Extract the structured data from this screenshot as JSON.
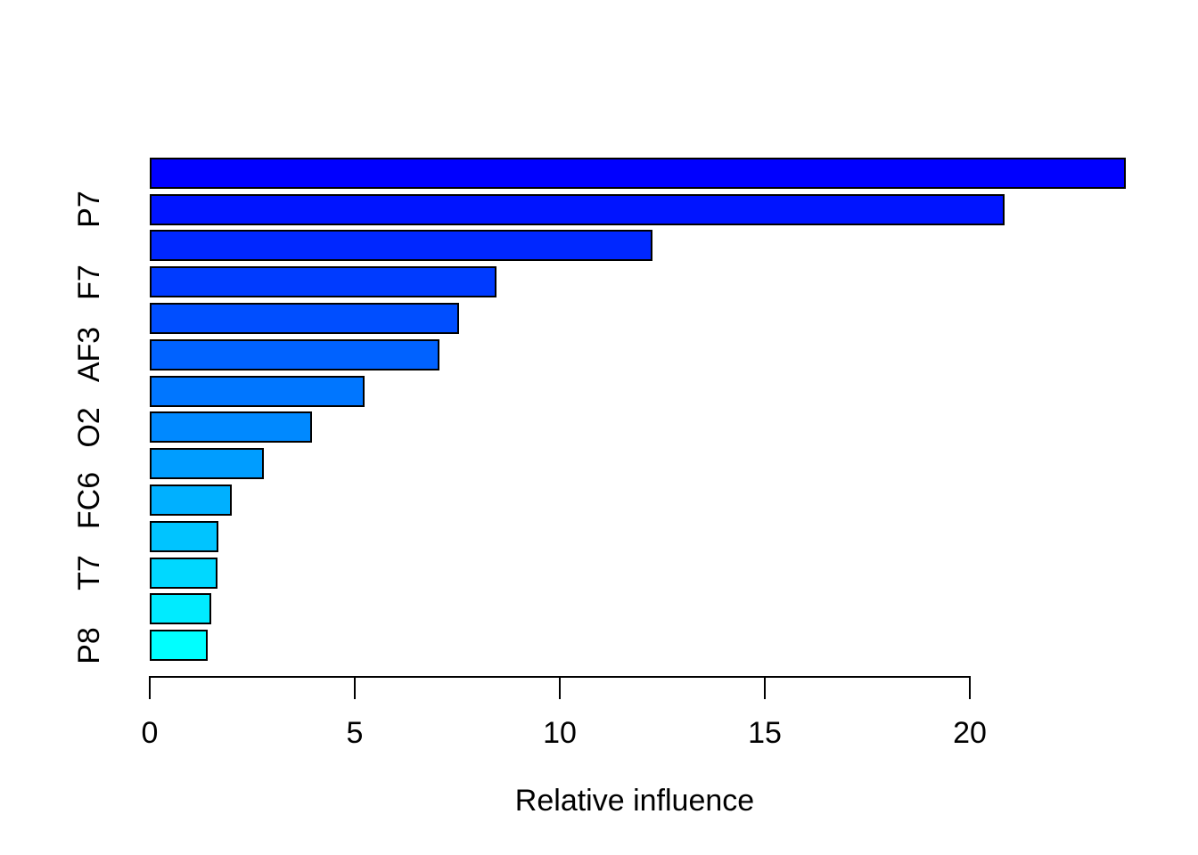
{
  "chart_data": {
    "type": "bar",
    "orientation": "horizontal",
    "title": "",
    "xlabel": "Relative influence",
    "ylabel": "",
    "xlim": [
      0,
      20
    ],
    "x_ticks": [
      0,
      5,
      10,
      15,
      20
    ],
    "grid": false,
    "legend_position": "none",
    "background_color": "#FFFFFF",
    "bar_border_color": "#000000",
    "text_color": "#000000",
    "bars": [
      {
        "label": "",
        "value": 23.8,
        "color": "#0000FF"
      },
      {
        "label": "P7",
        "value": 20.85,
        "color": "#0014FF"
      },
      {
        "label": "",
        "value": 12.26,
        "color": "#0027FF"
      },
      {
        "label": "F7",
        "value": 8.46,
        "color": "#003BFF"
      },
      {
        "label": "",
        "value": 7.54,
        "color": "#004EFF"
      },
      {
        "label": "AF3",
        "value": 7.07,
        "color": "#0062FF"
      },
      {
        "label": "",
        "value": 5.24,
        "color": "#0076FF"
      },
      {
        "label": "O2",
        "value": 3.96,
        "color": "#0089FF"
      },
      {
        "label": "",
        "value": 2.78,
        "color": "#009DFF"
      },
      {
        "label": "FC6",
        "value": 2.0,
        "color": "#00B0FF"
      },
      {
        "label": "",
        "value": 1.67,
        "color": "#00C4FF"
      },
      {
        "label": "T7",
        "value": 1.65,
        "color": "#00D8FF"
      },
      {
        "label": "",
        "value": 1.5,
        "color": "#00EBFF"
      },
      {
        "label": "P8",
        "value": 1.41,
        "color": "#00FFFF"
      }
    ]
  }
}
